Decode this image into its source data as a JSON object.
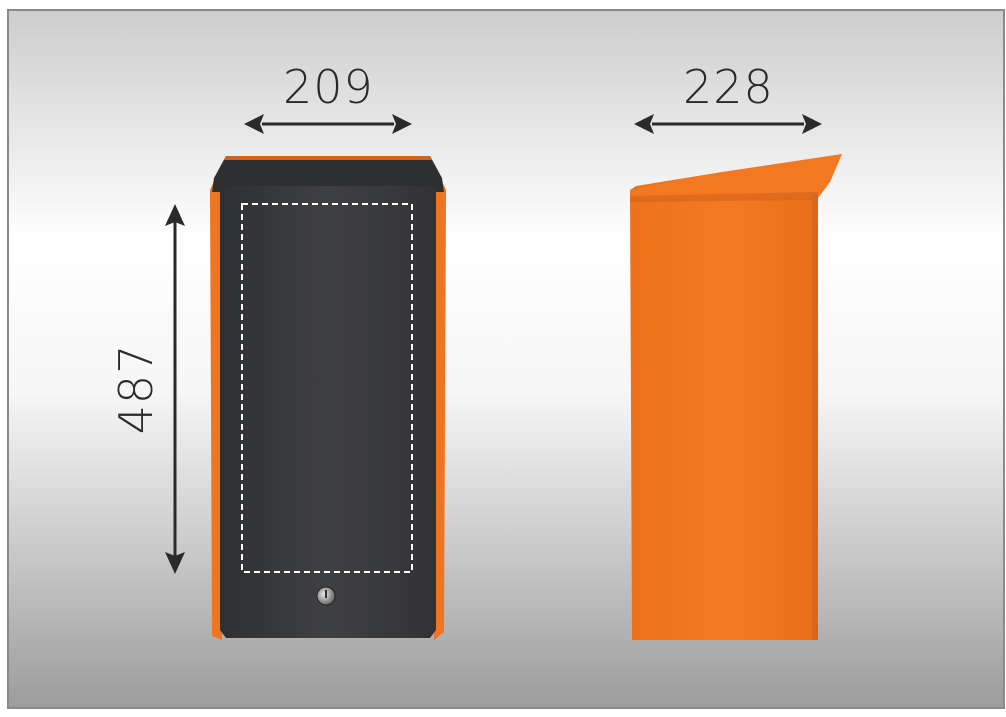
{
  "dimensions": {
    "front_width": "209",
    "side_depth": "228",
    "height": "487"
  },
  "colors": {
    "background_top": "#cfcfcf",
    "background_mid": "#ffffff",
    "background_bottom": "#9d9d9d",
    "frame": "#8a8a8a",
    "door_panel": "#3b3c3e",
    "housing_orange": "#f07520",
    "arrow": "#2a2a2a",
    "dashed_outline": "#ffffff"
  }
}
